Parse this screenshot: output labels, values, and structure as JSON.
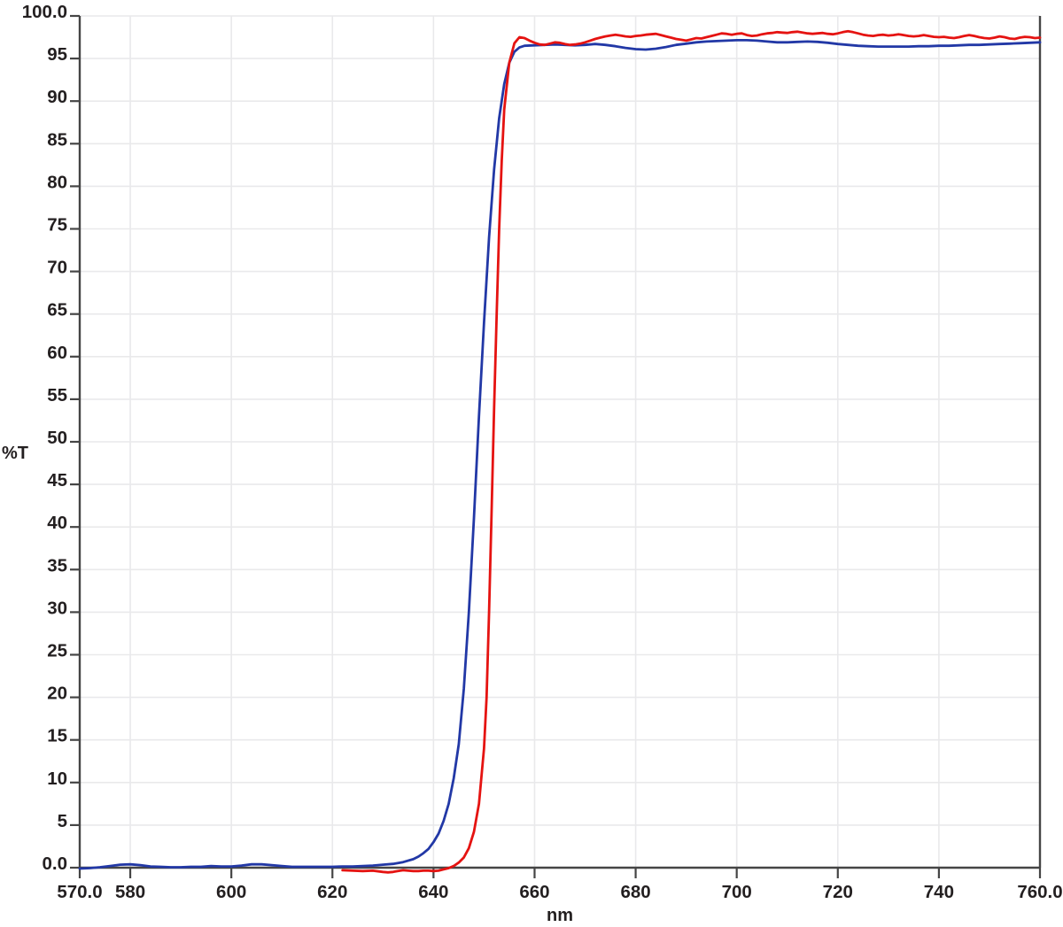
{
  "colors": {
    "background": "#ffffff",
    "axis": "#454545",
    "grid": "#e9e9eb",
    "text": "#231f20",
    "blue_trace": "#2238a6",
    "red_trace": "#e51311"
  },
  "chart_data": {
    "type": "line",
    "title": "",
    "xlabel": "nm",
    "ylabel": "%T",
    "xlim": [
      570,
      760
    ],
    "ylim": [
      0,
      100
    ],
    "grid": true,
    "legend": "none",
    "x_ticks": [
      570,
      580,
      600,
      620,
      640,
      660,
      680,
      700,
      720,
      740,
      760
    ],
    "x_tick_labels": [
      "570.0",
      "580",
      "600",
      "620",
      "640",
      "660",
      "680",
      "700",
      "720",
      "740",
      "760.0"
    ],
    "y_ticks": [
      0,
      5,
      10,
      15,
      20,
      25,
      30,
      35,
      40,
      45,
      50,
      55,
      60,
      65,
      70,
      75,
      80,
      85,
      90,
      95,
      100
    ],
    "y_tick_labels": [
      "0.0",
      "5",
      "10",
      "15",
      "20",
      "25",
      "30",
      "35",
      "40",
      "45",
      "50",
      "55",
      "60",
      "65",
      "70",
      "75",
      "80",
      "85",
      "90",
      "95",
      "100.0"
    ],
    "series": [
      {
        "name": "blue-trace",
        "color": "#2238a6",
        "x": [
          570,
          572,
          574,
          576,
          578,
          580,
          582,
          584,
          586,
          588,
          590,
          592,
          594,
          596,
          598,
          600,
          602,
          604,
          606,
          608,
          610,
          612,
          614,
          616,
          618,
          620,
          622,
          624,
          626,
          628,
          630,
          632,
          634,
          636,
          637,
          638,
          639,
          640,
          641,
          642,
          643,
          644,
          645,
          646,
          647,
          648,
          649,
          650,
          651,
          652,
          653,
          654,
          655,
          656,
          657,
          658,
          660,
          662,
          664,
          666,
          668,
          670,
          672,
          674,
          676,
          678,
          680,
          682,
          684,
          686,
          688,
          690,
          692,
          694,
          696,
          698,
          700,
          702,
          704,
          706,
          708,
          710,
          712,
          714,
          716,
          718,
          720,
          722,
          724,
          726,
          728,
          730,
          732,
          734,
          736,
          738,
          740,
          742,
          744,
          746,
          748,
          750,
          752,
          754,
          756,
          758,
          760
        ],
        "y": [
          -0.1,
          -0.05,
          0.05,
          0.2,
          0.35,
          0.4,
          0.3,
          0.15,
          0.1,
          0.05,
          0.05,
          0.1,
          0.1,
          0.2,
          0.15,
          0.15,
          0.25,
          0.4,
          0.4,
          0.3,
          0.2,
          0.1,
          0.1,
          0.1,
          0.1,
          0.1,
          0.15,
          0.15,
          0.2,
          0.25,
          0.35,
          0.45,
          0.65,
          1.0,
          1.3,
          1.7,
          2.2,
          3.0,
          4.0,
          5.5,
          7.5,
          10.5,
          14.5,
          21,
          30,
          41,
          53,
          64,
          74,
          82,
          88,
          92,
          94.5,
          95.8,
          96.3,
          96.5,
          96.55,
          96.6,
          96.65,
          96.6,
          96.55,
          96.6,
          96.7,
          96.6,
          96.45,
          96.25,
          96.1,
          96.05,
          96.15,
          96.35,
          96.6,
          96.75,
          96.9,
          97.0,
          97.05,
          97.1,
          97.15,
          97.15,
          97.1,
          97.0,
          96.9,
          96.9,
          96.95,
          97.0,
          96.95,
          96.85,
          96.7,
          96.6,
          96.5,
          96.45,
          96.4,
          96.4,
          96.4,
          96.4,
          96.45,
          96.45,
          96.5,
          96.5,
          96.55,
          96.6,
          96.6,
          96.65,
          96.7,
          96.75,
          96.8,
          96.85,
          96.9
        ]
      },
      {
        "name": "red-trace",
        "color": "#e51311",
        "x": [
          622,
          624,
          626,
          628,
          630,
          631,
          632,
          633,
          634,
          635,
          636,
          637,
          638,
          639,
          640,
          641,
          642,
          643,
          644,
          645,
          646,
          647,
          648,
          649,
          650,
          650.5,
          651,
          651.5,
          652,
          652.5,
          653,
          653.5,
          654,
          655,
          656,
          657,
          658,
          659,
          660,
          661,
          662,
          663,
          664,
          665,
          666,
          667,
          668,
          669,
          670,
          671,
          672,
          673,
          674,
          675,
          676,
          677,
          678,
          679,
          680,
          681,
          682,
          683,
          684,
          685,
          686,
          687,
          688,
          689,
          690,
          691,
          692,
          693,
          694,
          695,
          696,
          697,
          698,
          699,
          700,
          701,
          702,
          703,
          704,
          705,
          706,
          707,
          708,
          709,
          710,
          711,
          712,
          713,
          714,
          715,
          716,
          717,
          718,
          719,
          720,
          721,
          722,
          723,
          724,
          725,
          726,
          727,
          728,
          729,
          730,
          731,
          732,
          733,
          734,
          735,
          736,
          737,
          738,
          739,
          740,
          741,
          742,
          743,
          744,
          745,
          746,
          747,
          748,
          749,
          750,
          751,
          752,
          753,
          754,
          755,
          756,
          757,
          758,
          759,
          760
        ],
        "y": [
          -0.3,
          -0.35,
          -0.4,
          -0.35,
          -0.5,
          -0.55,
          -0.5,
          -0.4,
          -0.3,
          -0.35,
          -0.4,
          -0.4,
          -0.35,
          -0.35,
          -0.4,
          -0.35,
          -0.2,
          -0.05,
          0.2,
          0.6,
          1.2,
          2.3,
          4.2,
          7.5,
          14,
          20,
          30,
          42,
          54,
          65,
          75,
          83,
          89,
          94.5,
          96.8,
          97.5,
          97.4,
          97.1,
          96.85,
          96.65,
          96.6,
          96.75,
          96.9,
          96.85,
          96.7,
          96.6,
          96.65,
          96.75,
          96.9,
          97.1,
          97.3,
          97.45,
          97.6,
          97.7,
          97.8,
          97.7,
          97.6,
          97.55,
          97.65,
          97.7,
          97.8,
          97.85,
          97.9,
          97.75,
          97.6,
          97.45,
          97.3,
          97.2,
          97.1,
          97.25,
          97.4,
          97.35,
          97.5,
          97.65,
          97.8,
          97.95,
          97.9,
          97.8,
          97.9,
          97.95,
          97.75,
          97.65,
          97.7,
          97.85,
          97.95,
          98.0,
          98.1,
          98.05,
          98.0,
          98.1,
          98.15,
          98.05,
          97.95,
          97.9,
          97.95,
          98.0,
          97.9,
          97.85,
          97.95,
          98.1,
          98.2,
          98.1,
          97.95,
          97.8,
          97.7,
          97.65,
          97.75,
          97.8,
          97.7,
          97.75,
          97.85,
          97.75,
          97.65,
          97.6,
          97.65,
          97.75,
          97.65,
          97.55,
          97.5,
          97.55,
          97.45,
          97.4,
          97.5,
          97.65,
          97.75,
          97.65,
          97.5,
          97.4,
          97.35,
          97.45,
          97.6,
          97.5,
          97.35,
          97.3,
          97.45,
          97.55,
          97.5,
          97.4,
          97.45
        ]
      }
    ]
  }
}
